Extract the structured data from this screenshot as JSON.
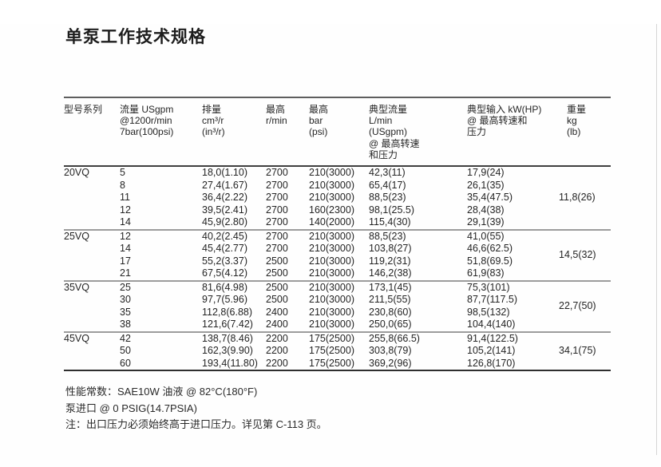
{
  "page": {
    "title": "单泵工作技术规格"
  },
  "table": {
    "headers": [
      {
        "id": "model-series",
        "lines": [
          "型号系列"
        ]
      },
      {
        "id": "flow",
        "lines": [
          "流量 USgpm",
          "@1200r/min",
          "7bar(100psi)"
        ]
      },
      {
        "id": "displacement",
        "lines": [
          "排量",
          "cm³/r",
          "(in³/r)"
        ]
      },
      {
        "id": "max-rpm",
        "lines": [
          "最高",
          "r/min"
        ]
      },
      {
        "id": "max-bar",
        "lines": [
          "最高",
          "bar",
          "(psi)"
        ]
      },
      {
        "id": "typical-flow",
        "lines": [
          "典型流量",
          "L/min",
          "(USgpm)",
          "@ 最高转速",
          "和压力"
        ]
      },
      {
        "id": "typical-input",
        "lines": [
          "典型输入 kW(HP)",
          "@ 最高转速和",
          "压力"
        ]
      },
      {
        "id": "weight",
        "lines": [
          "重量",
          "kg",
          "(lb)"
        ]
      }
    ],
    "groups": [
      {
        "series": "20VQ",
        "weight": "11,8(26)",
        "rows": [
          [
            "5",
            "18,0(1.10)",
            "2700",
            "210(3000)",
            "42,3(11)",
            "17,9(24)"
          ],
          [
            "8",
            "27,4(1.67)",
            "2700",
            "210(3000)",
            "65,4(17)",
            "26,1(35)"
          ],
          [
            "11",
            "36,4(2.22)",
            "2700",
            "210(3000)",
            "88,5(23)",
            "35,4(47.5)"
          ],
          [
            "12",
            "39,5(2.41)",
            "2700",
            "160(2300)",
            "98,1(25.5)",
            "28,4(38)"
          ],
          [
            "14",
            "45,9(2.80)",
            "2700",
            "140(2000)",
            "115,4(30)",
            "29,1(39)"
          ]
        ]
      },
      {
        "series": "25VQ",
        "weight": "14,5(32)",
        "rows": [
          [
            "12",
            "40,2(2.45)",
            "2700",
            "210(3000)",
            "88,5(23)",
            "41,0(55)"
          ],
          [
            "14",
            "45,4(2.77)",
            "2700",
            "210(3000)",
            "103,8(27)",
            "46,6(62.5)"
          ],
          [
            "17",
            "55,2(3.37)",
            "2500",
            "210(3000)",
            "119,2(31)",
            "51,8(69.5)"
          ],
          [
            "21",
            "67,5(4.12)",
            "2500",
            "210(3000)",
            "146,2(38)",
            "61,9(83)"
          ]
        ]
      },
      {
        "series": "35VQ",
        "weight": "22,7(50)",
        "rows": [
          [
            "25",
            "81,6(4.98)",
            "2500",
            "210(3000)",
            "173,1(45)",
            "75,3(101)"
          ],
          [
            "30",
            "97,7(5.96)",
            "2500",
            "210(3000)",
            "211,5(55)",
            "87,7(117.5)"
          ],
          [
            "35",
            "112,8(6.88)",
            "2400",
            "210(3000)",
            "230,8(60)",
            "98,5(132)"
          ],
          [
            "38",
            "121,6(7.42)",
            "2400",
            "210(3000)",
            "250,0(65)",
            "104,4(140)"
          ]
        ]
      },
      {
        "series": "45VQ",
        "weight": "34,1(75)",
        "rows": [
          [
            "42",
            "138,7(8.46)",
            "2200",
            "175(2500)",
            "255,8(66.5)",
            "91,4(122.5)"
          ],
          [
            "50",
            "162,3(9.90)",
            "2200",
            "175(2500)",
            "303,8(79)",
            "105,2(141)"
          ],
          [
            "60",
            "193,4(11.80)",
            "2200",
            "175(2500)",
            "369,2(96)",
            "126,8(170)"
          ]
        ]
      }
    ]
  },
  "notes": [
    "性能常数：SAE10W 油液 @ 82°C(180°F)",
    "泵进口 @ 0 PSIG(14.7PSIA)",
    "注：出口压力必须始终高于进口压力。详见第 C-113 页。"
  ],
  "colors": {
    "rule_dark": "#3f3f3f",
    "rule_gray": "#9c9c9c",
    "text": "#242424",
    "page_edge": "#d6d6d6"
  }
}
